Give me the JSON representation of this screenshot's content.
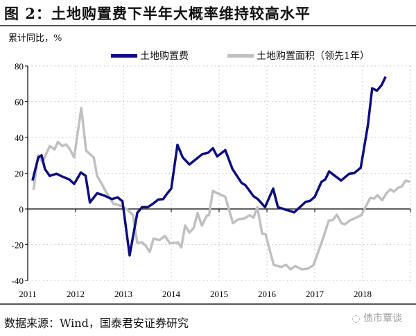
{
  "title": "图 2：土地购置费下半年大概率维持较高水平",
  "source": "数据来源：Wind，国泰君安证券研究",
  "watermark": "债市覃谈",
  "chart_data": {
    "type": "line",
    "title": "",
    "ylabel": "累计同比，%",
    "xlabel": "",
    "ylim": [
      -40,
      80
    ],
    "yticks": [
      "80",
      "60",
      "40",
      "20",
      "0",
      "-20",
      "-40"
    ],
    "xlim": [
      2011,
      2019
    ],
    "xticks": [
      "2011",
      "2012",
      "2013",
      "2014",
      "2015",
      "2016",
      "2017",
      "2018"
    ],
    "grid": true,
    "legend": "top",
    "series": [
      {
        "name": "土地购置费",
        "color": "#0d0d80",
        "points": [
          [
            2011.1,
            15.9
          ],
          [
            2011.22,
            28.8
          ],
          [
            2011.29,
            30
          ],
          [
            2011.36,
            22.3
          ],
          [
            2011.46,
            18.5
          ],
          [
            2011.6,
            19.7
          ],
          [
            2011.75,
            17.8
          ],
          [
            2011.87,
            16.5
          ],
          [
            2011.97,
            14
          ],
          [
            2012.11,
            20.4
          ],
          [
            2012.21,
            18.5
          ],
          [
            2012.3,
            3.6
          ],
          [
            2012.45,
            8.8
          ],
          [
            2012.6,
            7.5
          ],
          [
            2012.76,
            5.5
          ],
          [
            2012.88,
            6.5
          ],
          [
            2012.98,
            4.3
          ],
          [
            2013.13,
            -26
          ],
          [
            2013.29,
            -2.2
          ],
          [
            2013.39,
            1
          ],
          [
            2013.51,
            1
          ],
          [
            2013.63,
            3.2
          ],
          [
            2013.73,
            5.3
          ],
          [
            2013.83,
            5.5
          ],
          [
            2013.92,
            8.8
          ],
          [
            2014.0,
            11.4
          ],
          [
            2014.13,
            35.9
          ],
          [
            2014.24,
            28.8
          ],
          [
            2014.38,
            24.9
          ],
          [
            2014.53,
            28.1
          ],
          [
            2014.65,
            30.7
          ],
          [
            2014.77,
            31.4
          ],
          [
            2014.87,
            34
          ],
          [
            2014.96,
            29.4
          ],
          [
            2015.13,
            32.9
          ],
          [
            2015.28,
            22.3
          ],
          [
            2015.47,
            14.6
          ],
          [
            2015.55,
            13.3
          ],
          [
            2015.72,
            7.1
          ],
          [
            2015.81,
            5.5
          ],
          [
            2015.96,
            1
          ],
          [
            2016.13,
            11.4
          ],
          [
            2016.23,
            1
          ],
          [
            2016.57,
            -1.9
          ],
          [
            2016.81,
            4
          ],
          [
            2016.9,
            4.5
          ],
          [
            2017.0,
            6.8
          ],
          [
            2017.14,
            15.2
          ],
          [
            2017.22,
            16.5
          ],
          [
            2017.3,
            21
          ],
          [
            2017.55,
            15.9
          ],
          [
            2017.72,
            19.7
          ],
          [
            2017.82,
            20
          ],
          [
            2017.96,
            23
          ],
          [
            2018.11,
            46.8
          ],
          [
            2018.2,
            67.5
          ],
          [
            2018.3,
            66.2
          ],
          [
            2018.4,
            69.4
          ],
          [
            2018.48,
            74
          ]
        ]
      },
      {
        "name": "土地购置面积（领先1年）",
        "color": "#c0c0c0",
        "points": [
          [
            2011.12,
            10.7
          ],
          [
            2011.22,
            30
          ],
          [
            2011.31,
            26.2
          ],
          [
            2011.46,
            35.2
          ],
          [
            2011.56,
            33.3
          ],
          [
            2011.63,
            37.5
          ],
          [
            2011.72,
            35.2
          ],
          [
            2011.8,
            36.1
          ],
          [
            2011.87,
            33.9
          ],
          [
            2011.97,
            28.8
          ],
          [
            2012.12,
            56.5
          ],
          [
            2012.22,
            32.6
          ],
          [
            2012.38,
            28.8
          ],
          [
            2012.45,
            18.5
          ],
          [
            2012.55,
            13.9
          ],
          [
            2012.64,
            9.4
          ],
          [
            2012.79,
            3
          ],
          [
            2012.93,
            1.9
          ],
          [
            2013.08,
            -0.3
          ],
          [
            2013.2,
            -3.5
          ],
          [
            2013.29,
            -19
          ],
          [
            2013.39,
            -18.7
          ],
          [
            2013.46,
            -20.3
          ],
          [
            2013.55,
            -24.1
          ],
          [
            2013.63,
            -16.6
          ],
          [
            2013.75,
            -17.4
          ],
          [
            2013.87,
            -15.1
          ],
          [
            2013.97,
            -19.2
          ],
          [
            2014.14,
            -18.7
          ],
          [
            2014.21,
            -21.5
          ],
          [
            2014.29,
            -9.3
          ],
          [
            2014.38,
            -13.2
          ],
          [
            2014.47,
            -10.6
          ],
          [
            2014.55,
            -2.2
          ],
          [
            2014.64,
            -9.3
          ],
          [
            2014.75,
            -3.5
          ],
          [
            2014.79,
            -3.5
          ],
          [
            2014.87,
            10
          ],
          [
            2015.13,
            6.8
          ],
          [
            2015.29,
            -8
          ],
          [
            2015.4,
            -5.8
          ],
          [
            2015.52,
            -5.4
          ],
          [
            2015.64,
            -3.5
          ],
          [
            2015.72,
            -4.8
          ],
          [
            2015.8,
            1
          ],
          [
            2015.9,
            -13.8
          ],
          [
            2015.97,
            -14.1
          ],
          [
            2016.14,
            -31.2
          ],
          [
            2016.3,
            -32.5
          ],
          [
            2016.4,
            -31.2
          ],
          [
            2016.49,
            -33.8
          ],
          [
            2016.59,
            -31.9
          ],
          [
            2016.73,
            -33.8
          ],
          [
            2016.85,
            -33.4
          ],
          [
            2016.97,
            -31.6
          ],
          [
            2017.14,
            -19
          ],
          [
            2017.29,
            -6.7
          ],
          [
            2017.38,
            -6.1
          ],
          [
            2017.46,
            -3.2
          ],
          [
            2017.56,
            -8
          ],
          [
            2017.63,
            -8.6
          ],
          [
            2017.74,
            -6.3
          ],
          [
            2017.82,
            -5.4
          ],
          [
            2017.97,
            -3.5
          ],
          [
            2018.16,
            6.2
          ],
          [
            2018.24,
            5.8
          ],
          [
            2018.31,
            7.7
          ],
          [
            2018.41,
            4.9
          ],
          [
            2018.5,
            8.8
          ],
          [
            2018.58,
            11
          ],
          [
            2018.65,
            9.7
          ],
          [
            2018.75,
            12
          ],
          [
            2018.82,
            12.6
          ],
          [
            2018.9,
            15.9
          ],
          [
            2018.99,
            15.2
          ]
        ]
      }
    ]
  }
}
